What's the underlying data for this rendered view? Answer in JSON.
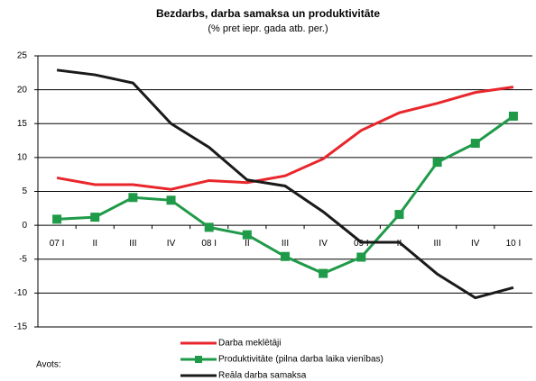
{
  "chart_data": {
    "type": "line",
    "title": "Bezdarbs, darba samaksa un produktivitāte",
    "subtitle": "(% pret iepr. gada atb. per.)",
    "categories": [
      "07 I",
      "II",
      "III",
      "IV",
      "08 I",
      "II",
      "III",
      "IV",
      "09 I",
      "II",
      "III",
      "IV",
      "10 I"
    ],
    "series": [
      {
        "name": "Darba meklētāji",
        "color": "#e8262b",
        "marker": false,
        "values": [
          7,
          6,
          6,
          5.3,
          6.6,
          6.3,
          7.3,
          9.8,
          14,
          16.6,
          18,
          19.6,
          20.4
        ]
      },
      {
        "name": "Produktivitāte (pilna darba laika vienības)",
        "color": "#1f9a48",
        "marker": true,
        "values": [
          0.9,
          1.2,
          4.1,
          3.7,
          -0.3,
          -1.4,
          -4.6,
          -7.1,
          -4.7,
          1.6,
          9.3,
          12.1,
          16.1
        ]
      },
      {
        "name": "Reāla darba samaksa",
        "color": "#1a1a1a",
        "marker": false,
        "values": [
          22.9,
          22.2,
          21,
          15,
          11.5,
          6.7,
          5.8,
          2,
          -2.5,
          -2.5,
          -7.2,
          -10.7,
          -9.2
        ]
      }
    ],
    "ylim": [
      -15,
      25
    ],
    "yticks": [
      -15,
      -10,
      -5,
      0,
      5,
      10,
      15,
      20,
      25
    ],
    "grid": true,
    "source": "Avots:"
  }
}
